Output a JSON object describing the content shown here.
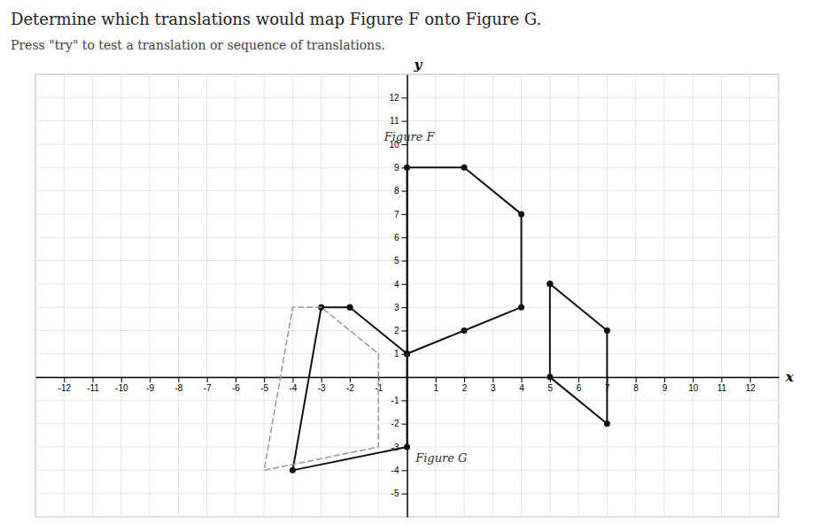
{
  "chart_data": {
    "type": "line",
    "title": "Determine which translations would map Figure F onto Figure G.",
    "subtitle": "Press \"try\" to test a translation or sequence of translations.",
    "xlabel": "x",
    "ylabel": "y",
    "xlim": [
      -13,
      13
    ],
    "ylim": [
      -6,
      13
    ],
    "xticks": [
      -12,
      -11,
      -10,
      -9,
      -8,
      -7,
      -6,
      -5,
      -4,
      -3,
      -2,
      -1,
      1,
      2,
      3,
      4,
      5,
      6,
      7,
      8,
      9,
      10,
      11,
      12
    ],
    "yticks": [
      -5,
      -4,
      -3,
      -2,
      -1,
      1,
      2,
      3,
      4,
      5,
      6,
      7,
      8,
      9,
      10,
      11,
      12
    ],
    "grid": true,
    "series": [
      {
        "color": "#111111",
        "marker": "circle",
        "line_style": "solid",
        "x": [
          0,
          2,
          4,
          4,
          2,
          0,
          0
        ],
        "values": [
          1,
          2,
          3,
          7,
          9,
          9,
          1
        ]
      },
      {
        "color": "#111111",
        "marker": "circle",
        "line_style": "solid",
        "x": [
          -2,
          -3,
          -4,
          0,
          0,
          -2
        ],
        "values": [
          3,
          3,
          -4,
          -3,
          1,
          3
        ]
      },
      {
        "color": "#111111",
        "marker": "circle",
        "line_style": "solid",
        "x": [
          5,
          7,
          7,
          5,
          5
        ],
        "values": [
          4,
          2,
          -2,
          0,
          4
        ]
      },
      {
        "color": "#999999",
        "marker": "none",
        "line_style": "dashed",
        "x": [
          -3,
          -4,
          -5,
          -1,
          -1,
          -3
        ],
        "values": [
          3,
          3,
          -4,
          -3,
          1,
          3
        ]
      }
    ],
    "annotations": [
      {
        "text": "Figure F",
        "x": -0.8,
        "y": 10.3
      },
      {
        "text": "Figure G",
        "x": 0.3,
        "y": -3.5
      }
    ]
  }
}
